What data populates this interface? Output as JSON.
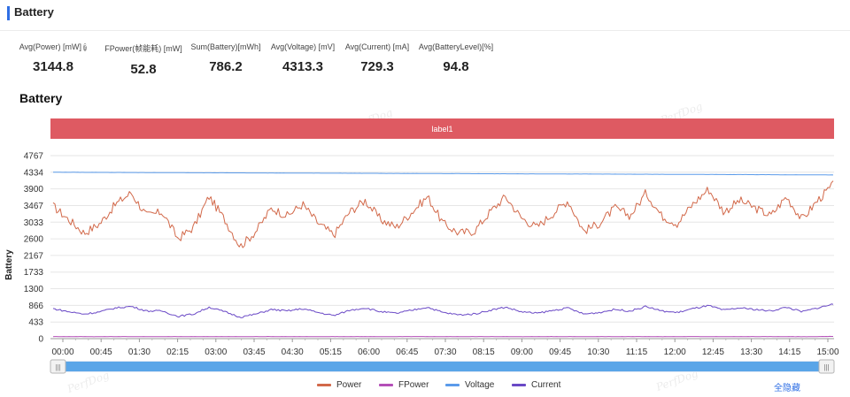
{
  "header": {
    "title": "Battery"
  },
  "stats": [
    {
      "label": "Avg(Power) [mW]",
      "value": "3144.8",
      "help": true
    },
    {
      "label": "FPower(帧能耗) [mW]",
      "value": "52.8"
    },
    {
      "label": "Sum(Battery)[mWh]",
      "value": "786.2"
    },
    {
      "label": "Avg(Voltage) [mV]",
      "value": "4313.3"
    },
    {
      "label": "Avg(Current) [mA]",
      "value": "729.3"
    },
    {
      "label": "Avg(BatteryLevel)[%]",
      "value": "94.8"
    }
  ],
  "watermark": "PerfDog",
  "chart_data": {
    "type": "line",
    "title": "Battery",
    "ylabel": "Battery",
    "xlabel": "",
    "label_band": "label1",
    "ylim": [
      0,
      4767
    ],
    "y_ticks": [
      "0",
      "433",
      "866",
      "1300",
      "1733",
      "2167",
      "2600",
      "3033",
      "3467",
      "3900",
      "4334",
      "4767"
    ],
    "x_ticks": [
      "00:00",
      "00:45",
      "01:30",
      "02:15",
      "03:00",
      "03:45",
      "04:30",
      "05:15",
      "06:00",
      "06:45",
      "07:30",
      "08:15",
      "09:00",
      "09:45",
      "10:30",
      "11:15",
      "12:00",
      "12:45",
      "13:30",
      "14:15",
      "15:00"
    ],
    "x_unit": "mm:ss",
    "grid": true,
    "legend_position": "bottom",
    "series": [
      {
        "name": "Power",
        "color": "#d2694a",
        "values": [
          3450,
          3100,
          2750,
          3000,
          3500,
          3800,
          3200,
          3300,
          2600,
          2900,
          3700,
          3100,
          2400,
          2800,
          3400,
          3200,
          3500,
          3000,
          2700,
          3300,
          3600,
          3100,
          2900,
          3300,
          3700,
          3000,
          2750,
          2800,
          3300,
          3700,
          3150,
          2900,
          3250,
          3600,
          2800,
          3000,
          3400,
          3200,
          3800,
          3200,
          3000,
          3500,
          3900,
          3300,
          3600,
          3400,
          3200,
          3700,
          3100,
          3600,
          4000
        ]
      },
      {
        "name": "FPower",
        "color": "#b44fb8",
        "values": [
          53,
          54,
          53,
          52,
          53,
          54,
          53,
          52,
          53,
          53,
          54,
          53,
          52,
          53,
          54,
          53,
          52,
          53,
          53,
          54,
          53,
          52,
          53,
          54,
          53,
          52,
          53,
          53,
          54,
          53,
          52,
          53,
          54,
          53,
          52,
          53,
          53,
          54,
          53,
          52,
          53,
          54,
          53,
          52,
          53,
          53,
          54,
          53,
          52,
          53,
          60
        ]
      },
      {
        "name": "Voltage",
        "color": "#5b9bea",
        "values": [
          4334,
          4333,
          4331,
          4330,
          4328,
          4327,
          4326,
          4324,
          4323,
          4321,
          4320,
          4319,
          4317,
          4316,
          4315,
          4313,
          4312,
          4310,
          4309,
          4308,
          4306,
          4305,
          4303,
          4302,
          4301,
          4299,
          4298,
          4296,
          4295,
          4294,
          4292,
          4291,
          4289,
          4288,
          4287,
          4285,
          4284,
          4282,
          4281,
          4280,
          4278,
          4277,
          4275,
          4274,
          4273,
          4271,
          4270,
          4268,
          4267,
          4266,
          4264
        ]
      },
      {
        "name": "Current",
        "color": "#6a49c6",
        "values": [
          780,
          700,
          640,
          700,
          800,
          840,
          720,
          720,
          580,
          640,
          820,
          700,
          560,
          640,
          760,
          720,
          780,
          680,
          600,
          740,
          800,
          700,
          660,
          740,
          820,
          680,
          620,
          640,
          740,
          820,
          700,
          660,
          730,
          800,
          640,
          680,
          760,
          720,
          840,
          720,
          680,
          780,
          860,
          740,
          800,
          760,
          720,
          820,
          700,
          800,
          900
        ]
      }
    ]
  },
  "slider": {
    "left_handle": "|||",
    "right_handle": "|||"
  },
  "legend_action": "全隐藏"
}
